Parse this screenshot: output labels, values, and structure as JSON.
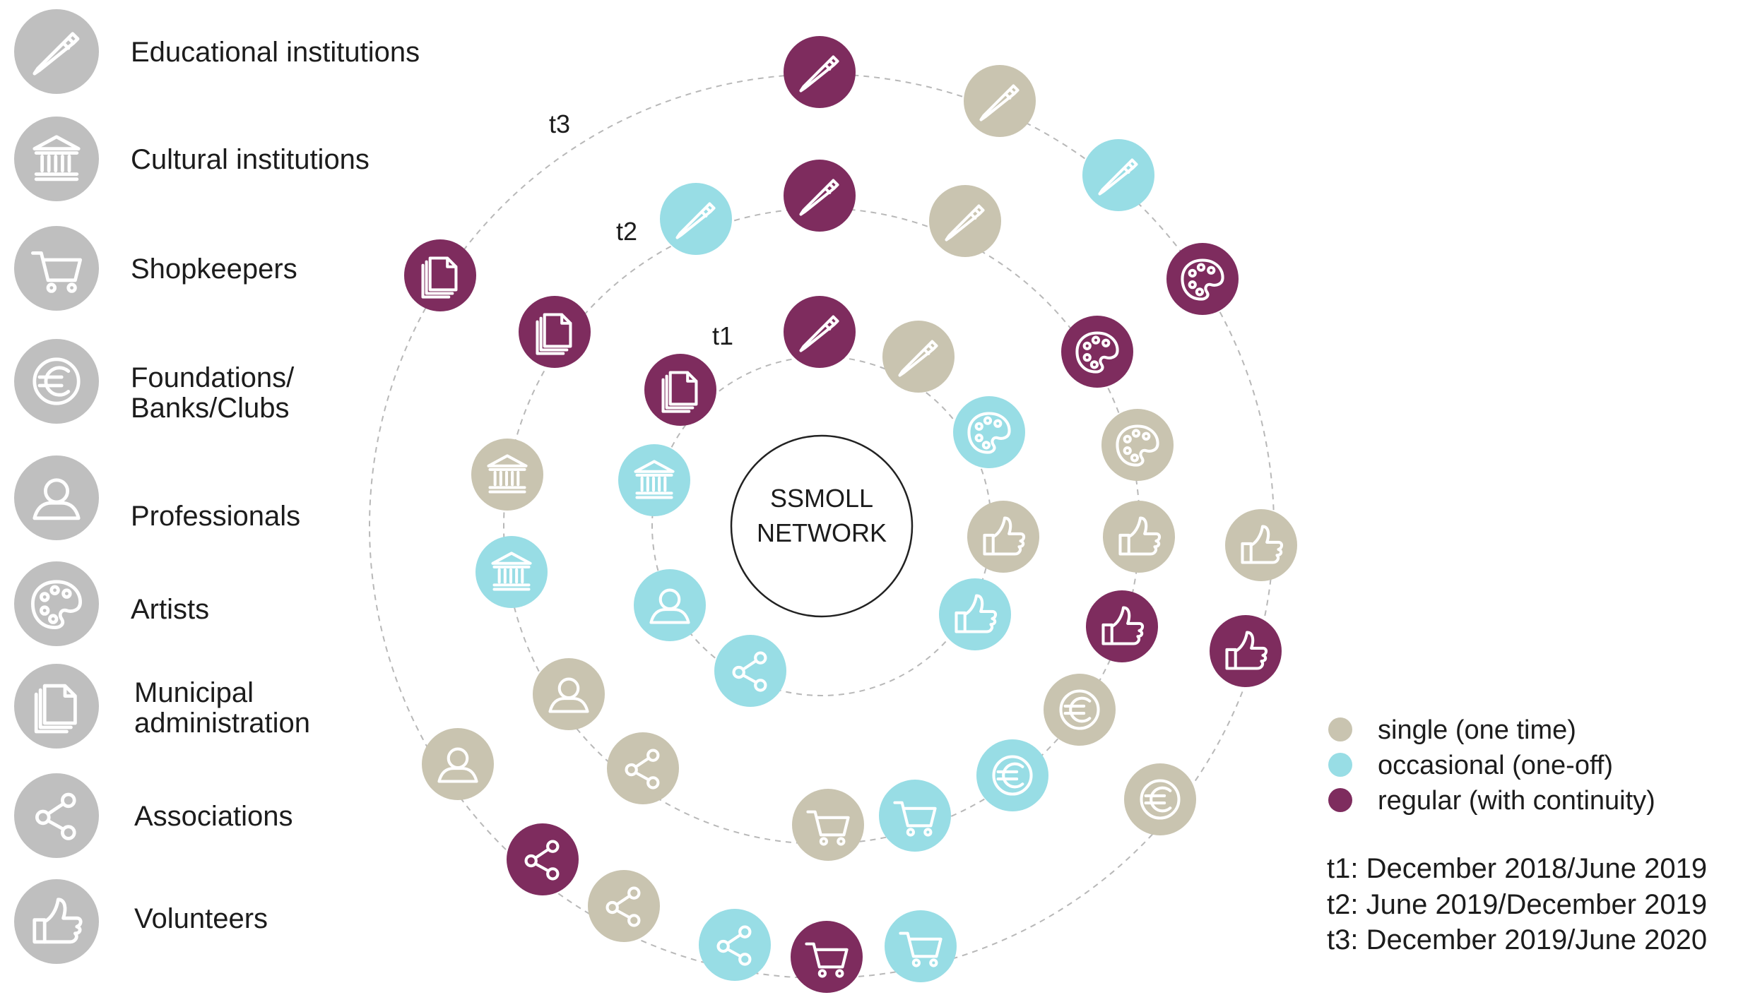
{
  "center_label": [
    "SSMOLL",
    "NETWORK"
  ],
  "ring_labels": {
    "t1": "t1",
    "t2": "t2",
    "t3": "t3"
  },
  "colors": {
    "single": "#c9c4b0",
    "occasional": "#98dde5",
    "regular": "#7e2c5e",
    "category_icon": "#bfbfbf",
    "ring_line": "#b8b8b8"
  },
  "categories": [
    {
      "id": "edu",
      "icon": "pencil-icon",
      "lines": [
        "Educational institutions"
      ]
    },
    {
      "id": "cul",
      "icon": "museum-icon",
      "lines": [
        "Cultural institutions"
      ]
    },
    {
      "id": "shop",
      "icon": "cart-icon",
      "lines": [
        "Shopkeepers"
      ]
    },
    {
      "id": "fund",
      "icon": "euro-icon",
      "lines": [
        "Foundations/",
        "Banks/Clubs"
      ]
    },
    {
      "id": "prof",
      "icon": "person-icon",
      "lines": [
        "Professionals"
      ]
    },
    {
      "id": "art",
      "icon": "palette-icon",
      "lines": [
        "Artists"
      ]
    },
    {
      "id": "muni",
      "icon": "documents-icon",
      "lines": [
        "Municipal",
        "administration"
      ]
    },
    {
      "id": "assoc",
      "icon": "share-icon",
      "lines": [
        "Associations"
      ]
    },
    {
      "id": "vol",
      "icon": "thumbs-up-icon",
      "lines": [
        "Volunteers"
      ]
    }
  ],
  "frequency_legend": [
    {
      "key": "single",
      "label": "single (one time)"
    },
    {
      "key": "occasional",
      "label": "occasional (one-off)"
    },
    {
      "key": "regular",
      "label": "regular (with continuity)"
    }
  ],
  "periods": [
    "t1: December 2018/June 2019",
    "t2: June 2019/December 2019",
    "t3: December 2019/June 2020"
  ],
  "rings": {
    "t1": [
      {
        "cat": "edu",
        "freq": "regular"
      },
      {
        "cat": "edu",
        "freq": "single"
      },
      {
        "cat": "art",
        "freq": "occasional"
      },
      {
        "cat": "vol",
        "freq": "single"
      },
      {
        "cat": "vol",
        "freq": "occasional"
      },
      {
        "cat": "assoc",
        "freq": "occasional"
      },
      {
        "cat": "prof",
        "freq": "occasional"
      },
      {
        "cat": "cul",
        "freq": "occasional"
      },
      {
        "cat": "muni",
        "freq": "regular"
      }
    ],
    "t2": [
      {
        "cat": "edu",
        "freq": "regular"
      },
      {
        "cat": "edu",
        "freq": "single"
      },
      {
        "cat": "art",
        "freq": "regular"
      },
      {
        "cat": "art",
        "freq": "single"
      },
      {
        "cat": "vol",
        "freq": "single"
      },
      {
        "cat": "vol",
        "freq": "regular"
      },
      {
        "cat": "fund",
        "freq": "single"
      },
      {
        "cat": "fund",
        "freq": "occasional"
      },
      {
        "cat": "shop",
        "freq": "occasional"
      },
      {
        "cat": "shop",
        "freq": "single"
      },
      {
        "cat": "assoc",
        "freq": "single"
      },
      {
        "cat": "prof",
        "freq": "single"
      },
      {
        "cat": "cul",
        "freq": "occasional"
      },
      {
        "cat": "cul",
        "freq": "single"
      },
      {
        "cat": "muni",
        "freq": "regular"
      },
      {
        "cat": "edu",
        "freq": "occasional"
      }
    ],
    "t3": [
      {
        "cat": "edu",
        "freq": "regular"
      },
      {
        "cat": "edu",
        "freq": "single"
      },
      {
        "cat": "edu",
        "freq": "occasional"
      },
      {
        "cat": "art",
        "freq": "regular"
      },
      {
        "cat": "vol",
        "freq": "single"
      },
      {
        "cat": "vol",
        "freq": "regular"
      },
      {
        "cat": "fund",
        "freq": "single"
      },
      {
        "cat": "shop",
        "freq": "occasional"
      },
      {
        "cat": "shop",
        "freq": "regular"
      },
      {
        "cat": "assoc",
        "freq": "occasional"
      },
      {
        "cat": "assoc",
        "freq": "single"
      },
      {
        "cat": "assoc",
        "freq": "regular"
      },
      {
        "cat": "prof",
        "freq": "single"
      },
      {
        "cat": "muni",
        "freq": "regular"
      }
    ]
  }
}
